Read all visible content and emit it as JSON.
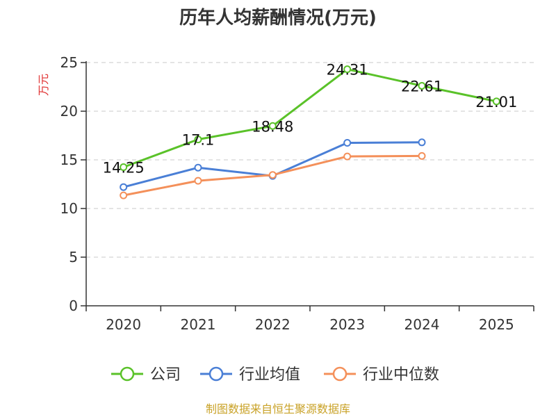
{
  "chart_data": {
    "type": "line",
    "title": "历年人均薪酬情况(万元)",
    "ylabel": "万元",
    "xlabel": "",
    "categories": [
      "2020",
      "2021",
      "2022",
      "2023",
      "2024",
      "2025"
    ],
    "ylim": [
      0,
      25
    ],
    "yticks": [
      0,
      5,
      10,
      15,
      20,
      25
    ],
    "grid": true,
    "legend_position": "bottom",
    "series": [
      {
        "name": "公司",
        "color": "#5ac229",
        "values": [
          14.25,
          17.1,
          18.48,
          24.31,
          22.61,
          21.01
        ],
        "labels": [
          "14.25",
          "17.1",
          "18.48",
          "24.31",
          "22.61",
          "21.01"
        ]
      },
      {
        "name": "行业均值",
        "color": "#4a7fd6",
        "values": [
          12.2,
          14.2,
          13.35,
          16.75,
          16.8,
          null
        ]
      },
      {
        "name": "行业中位数",
        "color": "#f4905a",
        "values": [
          11.35,
          12.85,
          13.45,
          15.35,
          15.4,
          null
        ]
      }
    ]
  },
  "source_text": "制图数据来自恒生聚源数据库"
}
